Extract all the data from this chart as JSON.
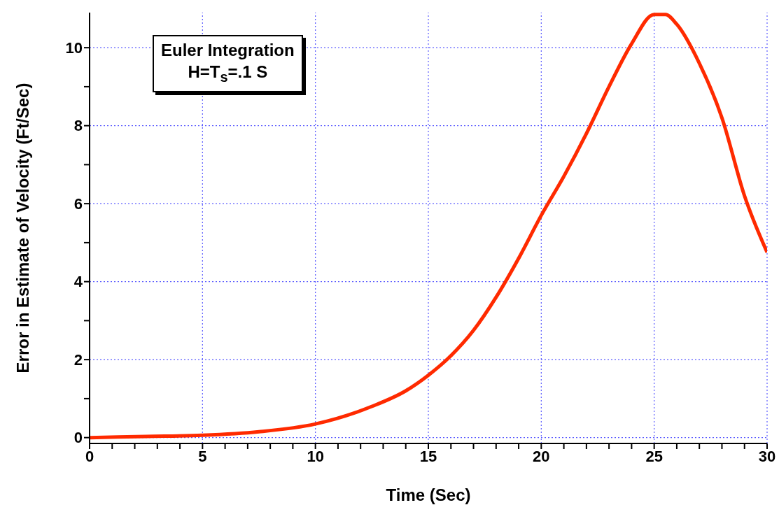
{
  "chart_data": {
    "type": "line",
    "xlabel": "Time (Sec)",
    "ylabel": "Error in Estimate of Velocity (Ft/Sec)",
    "annotations": [
      "Euler Integration\nH=T$_{s}$=.1 S"
    ],
    "x": [
      0,
      2.5,
      5,
      7.5,
      10,
      12.5,
      14,
      15,
      16,
      17,
      18,
      19,
      20,
      21,
      22,
      23,
      24,
      25,
      25.5,
      26,
      27,
      28,
      29,
      30
    ],
    "series": [
      {
        "color": "#ff2a00",
        "values": [
          0,
          0.03,
          0.06,
          0.15,
          0.35,
          0.8,
          1.2,
          1.6,
          2.1,
          2.75,
          3.6,
          4.6,
          5.7,
          6.7,
          7.8,
          9.0,
          10.1,
          10.85,
          10.85,
          10.6,
          9.6,
          8.2,
          6.2,
          4.75
        ]
      }
    ],
    "xlim": [
      0,
      30
    ],
    "ylim": [
      -0.15,
      10.9
    ],
    "xticks": [
      0,
      {
        "value": 1,
        "label": null
      },
      {
        "value": 2,
        "label": null
      },
      {
        "value": 3,
        "label": null
      },
      {
        "value": 4,
        "label": null
      },
      5,
      {
        "value": 6,
        "label": null
      },
      {
        "value": 7,
        "label": null
      },
      {
        "value": 8,
        "label": null
      },
      {
        "value": 9,
        "label": null
      },
      10,
      {
        "value": 11,
        "label": null
      },
      {
        "value": 12,
        "label": null
      },
      {
        "value": 13,
        "label": null
      },
      {
        "value": 14,
        "label": null
      },
      15,
      {
        "value": 16,
        "label": null
      },
      {
        "value": 17,
        "label": null
      },
      {
        "value": 18,
        "label": null
      },
      {
        "value": 19,
        "label": null
      },
      20,
      {
        "value": 21,
        "label": null
      },
      {
        "value": 22,
        "label": null
      },
      {
        "value": 23,
        "label": null
      },
      {
        "value": 24,
        "label": null
      },
      25,
      {
        "value": 26,
        "label": null
      },
      {
        "value": 27,
        "label": null
      },
      {
        "value": 28,
        "label": null
      },
      {
        "value": 29,
        "label": null
      },
      30
    ],
    "yticks": [
      0,
      {
        "value": 1,
        "label": null
      },
      2,
      {
        "value": 3,
        "label": null
      },
      4,
      {
        "value": 5,
        "label": null
      },
      6,
      {
        "value": 7,
        "label": null
      },
      8,
      {
        "value": 9,
        "label": null
      },
      10
    ],
    "grid": true,
    "marker": "none",
    "line_style": "solid"
  }
}
